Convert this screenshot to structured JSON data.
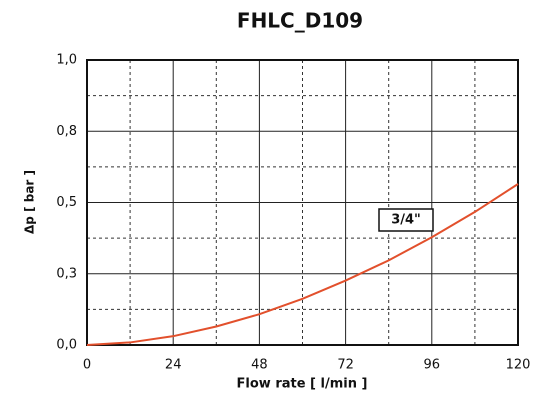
{
  "chart_data": {
    "type": "line",
    "title": "FHLC_D109",
    "x_label": "Flow rate [ l/min ]",
    "y_label": "Δp [ bar ]",
    "x": [
      0,
      12,
      24,
      36,
      48,
      60,
      72,
      84,
      96,
      108,
      120
    ],
    "series": [
      {
        "name": "3/4\"",
        "color": "#e2502c",
        "values": [
          0,
          0.009,
          0.031,
          0.065,
          0.108,
          0.162,
          0.226,
          0.297,
          0.378,
          0.467,
          0.565
        ]
      }
    ],
    "xlim": [
      0,
      120
    ],
    "xticks": [
      0,
      24,
      48,
      72,
      96,
      120
    ],
    "ylim": [
      0,
      1
    ],
    "yticks": [
      {
        "value": 0,
        "label": "0,0"
      },
      {
        "value": 0.25,
        "label": "0,3"
      },
      {
        "value": 0.5,
        "label": "0,5"
      },
      {
        "value": 0.75,
        "label": "0,8"
      },
      {
        "value": 1,
        "label": "1,0"
      }
    ],
    "x_minor_grid": [
      12,
      36,
      60,
      84,
      108
    ],
    "y_minor_grid": [
      0.125,
      0.375,
      0.625,
      0.875
    ],
    "grid": true
  }
}
